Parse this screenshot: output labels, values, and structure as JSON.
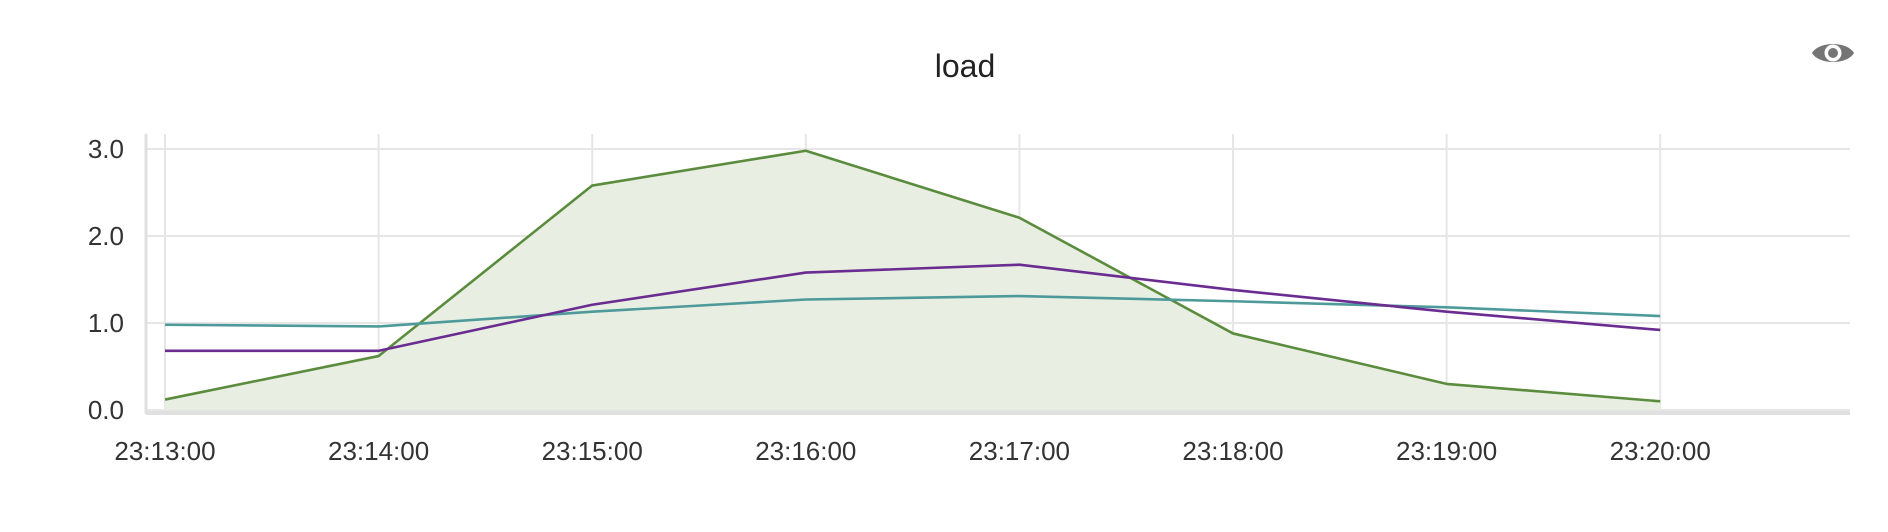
{
  "header": {
    "title": "load",
    "toggle_icon": "eye-icon"
  },
  "chart_data": {
    "type": "line",
    "title": "load",
    "x": [
      "23:13:00",
      "23:14:00",
      "23:15:00",
      "23:16:00",
      "23:17:00",
      "23:18:00",
      "23:19:00",
      "23:20:00"
    ],
    "x_ticks": [
      "23:13:00",
      "23:14:00",
      "23:15:00",
      "23:16:00",
      "23:17:00",
      "23:18:00",
      "23:19:00",
      "23:20:00"
    ],
    "y_ticks": [
      "0.0",
      "1.0",
      "2.0",
      "3.0"
    ],
    "ylim": [
      0,
      3
    ],
    "grid": true,
    "series": [
      {
        "color": "#5b8c3e",
        "fill": true,
        "fill_color": "#e8efe2",
        "values": [
          0.12,
          0.62,
          2.58,
          2.98,
          2.21,
          0.88,
          0.3,
          0.1
        ]
      },
      {
        "color": "#4e9a9a",
        "fill": false,
        "values": [
          0.98,
          0.96,
          1.13,
          1.27,
          1.31,
          1.25,
          1.18,
          1.08
        ]
      },
      {
        "color": "#6a2c91",
        "fill": false,
        "values": [
          0.68,
          0.68,
          1.21,
          1.58,
          1.67,
          1.38,
          1.13,
          0.92
        ]
      }
    ]
  }
}
